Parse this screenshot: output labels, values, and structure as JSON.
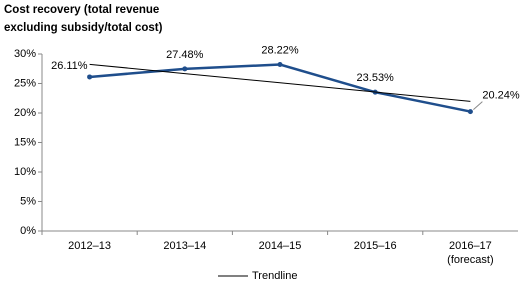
{
  "chart_data": {
    "type": "line",
    "title_lines": [
      "Cost recovery (total revenue",
      "excluding subsidy/total cost)"
    ],
    "categories": [
      "2012–13",
      "2013–14",
      "2014–15",
      "2015–16",
      "2016–17 (forecast)"
    ],
    "series": [
      {
        "color": "#1f4e8c",
        "values": [
          26.11,
          27.48,
          28.22,
          23.53,
          20.24
        ],
        "value_labels": [
          "26.11%",
          "27.48%",
          "28.22%",
          "23.53%",
          "20.24%"
        ]
      },
      {
        "name": "Trendline",
        "color": "#000000",
        "values": [
          28.25,
          26.68,
          25.12,
          23.55,
          21.98
        ]
      }
    ],
    "ylim": [
      0,
      30
    ],
    "yticks": [
      {
        "value": 0,
        "label": "0%"
      },
      {
        "value": 5,
        "label": "5%"
      },
      {
        "value": 10,
        "label": "10%"
      },
      {
        "value": 15,
        "label": "15%"
      },
      {
        "value": 20,
        "label": "20%"
      },
      {
        "value": 25,
        "label": "25%"
      },
      {
        "value": 30,
        "label": "30%"
      }
    ],
    "legend": "bottom"
  }
}
